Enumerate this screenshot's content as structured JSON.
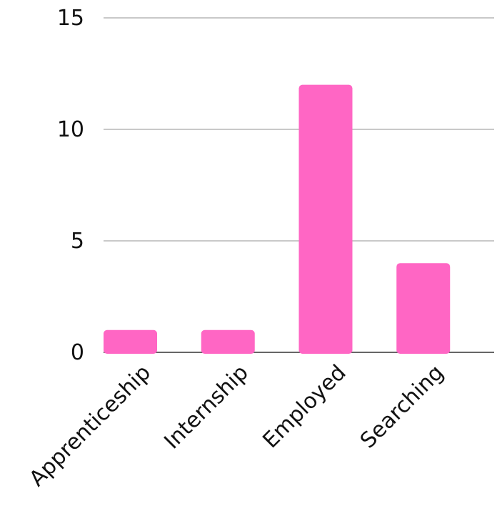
{
  "chart_data": {
    "type": "bar",
    "categories": [
      "Apprenticeship",
      "Internship",
      "Employed",
      "Searching"
    ],
    "values": [
      1,
      1,
      12,
      4
    ],
    "ylim": [
      0,
      15
    ],
    "yticks": [
      0,
      5,
      10,
      15
    ],
    "grid": true,
    "bar_color": "#ff66c4",
    "title": "",
    "xlabel": "",
    "ylabel": ""
  }
}
